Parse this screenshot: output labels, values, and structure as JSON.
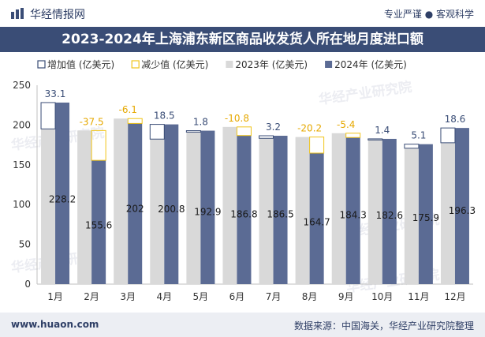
{
  "header": {
    "brand": "华经情报网",
    "slogan": "专业严谨 ● 客观科学",
    "title": "2023-2024年上海浦东新区商品收发货人所在地月度进口额"
  },
  "footer": {
    "website": "www.huaon.com",
    "source": "数据来源：中国海关，华经产业研究院整理"
  },
  "colors": {
    "increase": "#3a4d76",
    "decrease": "#f0c419",
    "y2023": "#d9d9d9",
    "y2024": "#5b6b94"
  },
  "chart_data": {
    "type": "bar",
    "categories": [
      "1月",
      "2月",
      "3月",
      "4月",
      "5月",
      "6月",
      "7月",
      "8月",
      "9月",
      "10月",
      "11月",
      "12月"
    ],
    "series": [
      {
        "name": "2023年 (亿美元)",
        "values": [
          195.1,
          193.1,
          208.1,
          182.3,
          191.1,
          197.6,
          183.3,
          184.9,
          189.7,
          181.2,
          170.8,
          177.7
        ]
      },
      {
        "name": "2024年 (亿美元)",
        "values": [
          228.2,
          155.6,
          202,
          200.8,
          192.9,
          186.8,
          186.5,
          164.7,
          184.3,
          182.6,
          175.9,
          196.3
        ]
      }
    ],
    "change": {
      "increase_name": "增加值 (亿美元)",
      "decrease_name": "减少值 (亿美元)",
      "values": [
        33.1,
        -37.5,
        -6.1,
        18.5,
        1.8,
        -10.8,
        3.2,
        -20.2,
        -5.4,
        1.4,
        5.1,
        18.6
      ]
    },
    "ylim": [
      0,
      250
    ],
    "yticks": [
      0,
      50,
      100,
      150,
      200,
      250
    ],
    "legend_position": "top",
    "watermark": "华经产业研究院"
  }
}
